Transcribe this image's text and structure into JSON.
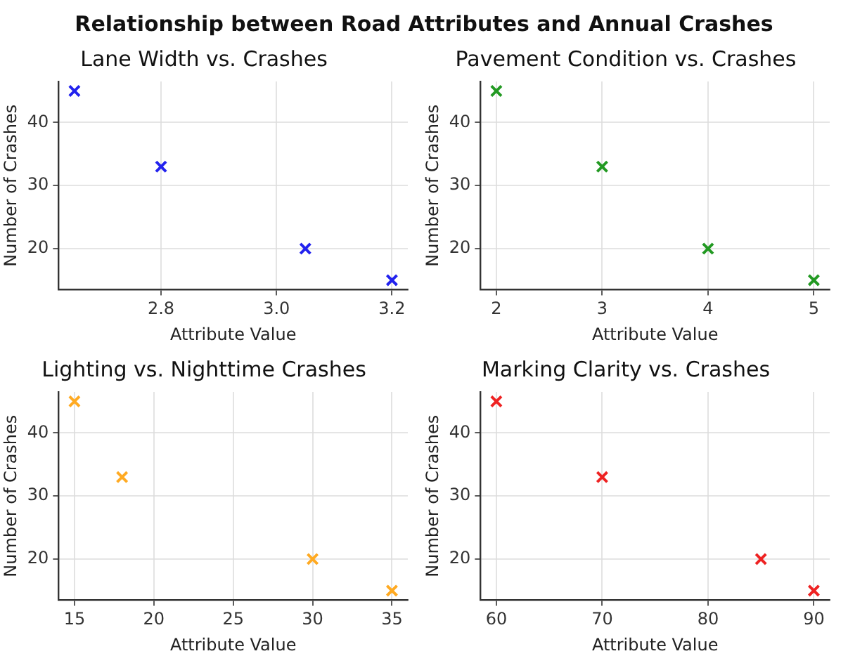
{
  "chart_data": [
    {
      "type": "other",
      "title": "Relationship between Road Attributes and Annual Crashes"
    },
    {
      "type": "scatter",
      "title": "Lane Width vs. Crashes",
      "xlabel": "Attribute Value",
      "ylabel": "Number of Crashes",
      "x": [
        2.65,
        2.8,
        3.05,
        3.2
      ],
      "values": [
        45,
        33,
        20,
        15
      ],
      "color": "#2222ee",
      "xlim": [
        2.6225,
        3.2275
      ],
      "xticks": [
        2.8,
        {
          "value": 3.0,
          "label": "3.0"
        },
        3.2
      ],
      "ylim": [
        13.5,
        46.5
      ],
      "yticks": [
        20,
        30,
        40
      ],
      "grid": true,
      "marker": "cross"
    },
    {
      "type": "scatter",
      "title": "Pavement Condition vs. Crashes",
      "xlabel": "Attribute Value",
      "ylabel": "Number of Crashes",
      "x": [
        2,
        3,
        4,
        5
      ],
      "values": [
        45,
        33,
        20,
        15
      ],
      "color": "#229922",
      "xlim": [
        1.85,
        5.15
      ],
      "xticks": [
        2,
        3,
        4,
        5
      ],
      "ylim": [
        13.5,
        46.5
      ],
      "yticks": [
        20,
        30,
        40
      ],
      "grid": true,
      "marker": "cross"
    },
    {
      "type": "scatter",
      "title": "Lighting vs. Nighttime Crashes",
      "xlabel": "Attribute Value",
      "ylabel": "Number of Crashes",
      "x": [
        15,
        18,
        30,
        35
      ],
      "values": [
        45,
        33,
        20,
        15
      ],
      "color": "#ffaa22",
      "xlim": [
        14,
        36
      ],
      "xticks": [
        15,
        20,
        25,
        30,
        35
      ],
      "ylim": [
        13.5,
        46.5
      ],
      "yticks": [
        20,
        30,
        40
      ],
      "grid": true,
      "marker": "cross"
    },
    {
      "type": "scatter",
      "title": "Marking Clarity vs. Crashes",
      "xlabel": "Attribute Value",
      "ylabel": "Number of Crashes",
      "x": [
        60,
        70,
        85,
        90
      ],
      "values": [
        45,
        33,
        20,
        15
      ],
      "color": "#ee2222",
      "xlim": [
        58.5,
        91.5
      ],
      "xticks": [
        60,
        70,
        80,
        90
      ],
      "ylim": [
        13.5,
        46.5
      ],
      "yticks": [
        20,
        30,
        40
      ],
      "grid": true,
      "marker": "cross"
    }
  ]
}
